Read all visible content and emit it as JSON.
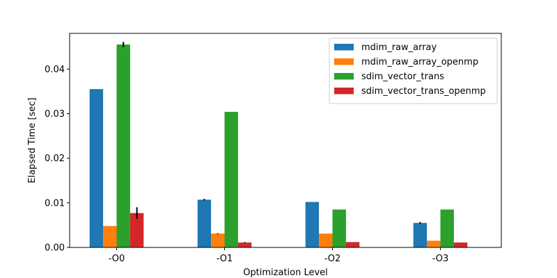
{
  "chart_data": {
    "type": "bar",
    "categories": [
      "-O0",
      "-O1",
      "-O2",
      "-O3"
    ],
    "series": [
      {
        "name": "mdim_raw_array",
        "color": "#1f77b4",
        "values": [
          0.0355,
          0.0107,
          0.0102,
          0.0055
        ],
        "errors": [
          0.0,
          0.0002,
          0.0,
          0.0002
        ]
      },
      {
        "name": "mdim_raw_array_openmp",
        "color": "#ff7f0e",
        "values": [
          0.0048,
          0.0031,
          0.0031,
          0.0015
        ],
        "errors": [
          0.0,
          0.0001,
          0.0,
          0.0
        ]
      },
      {
        "name": "sdim_vector_trans",
        "color": "#2ca02c",
        "values": [
          0.0455,
          0.0304,
          0.0085,
          0.0085
        ],
        "errors": [
          0.0006,
          0.0,
          0.0,
          0.0
        ]
      },
      {
        "name": "sdim_vector_trans_openmp",
        "color": "#d62728",
        "values": [
          0.0077,
          0.0011,
          0.0012,
          0.0011
        ],
        "errors": [
          0.0013,
          0.0001,
          0.0,
          0.0
        ]
      }
    ],
    "xlabel": "Optimization Level",
    "ylabel": "Elapsed Time [sec]",
    "ylim": [
      0,
      0.048
    ],
    "yticks": [
      0.0,
      0.01,
      0.02,
      0.03,
      0.04
    ],
    "ytick_labels": [
      "0.00",
      "0.01",
      "0.02",
      "0.03",
      "0.04"
    ],
    "grid": false,
    "legend_position": "top-right"
  }
}
